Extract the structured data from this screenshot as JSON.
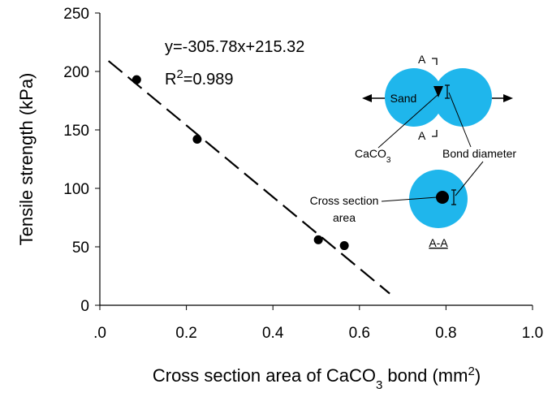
{
  "chart_data": {
    "type": "scatter",
    "ylabel": "Tensile strength (kPa)",
    "xlabel": [
      "Cross section area of CaCO",
      "3",
      " bond (mm",
      "2",
      ")"
    ],
    "x": [
      0.085,
      0.225,
      0.505,
      0.565
    ],
    "values": [
      193,
      142,
      56,
      51
    ],
    "color": "#000000",
    "fit": {
      "x": [
        0.02,
        0.67
      ],
      "values": [
        209,
        10
      ]
    },
    "equation": "y=-305.78x+215.32",
    "r2": [
      "R",
      "2",
      "=0.989"
    ],
    "xlim": [
      0,
      1.0
    ],
    "ylim": [
      0,
      250
    ],
    "xticks": [
      {
        "value": 0,
        "label": ".0"
      },
      0.2,
      0.4,
      0.6,
      0.8,
      {
        "value": 1.0,
        "label": "1.0"
      }
    ],
    "yticks": [
      0,
      50,
      100,
      150,
      200,
      250
    ],
    "grid": false
  },
  "diagram": {
    "section_top": "A",
    "section_bottom": "A",
    "sand": "Sand",
    "caco3": [
      "CaCO",
      "3"
    ],
    "bond_diameter": "Bond diameter",
    "cross_section": [
      "Cross section",
      "area"
    ],
    "view": "A-A"
  }
}
